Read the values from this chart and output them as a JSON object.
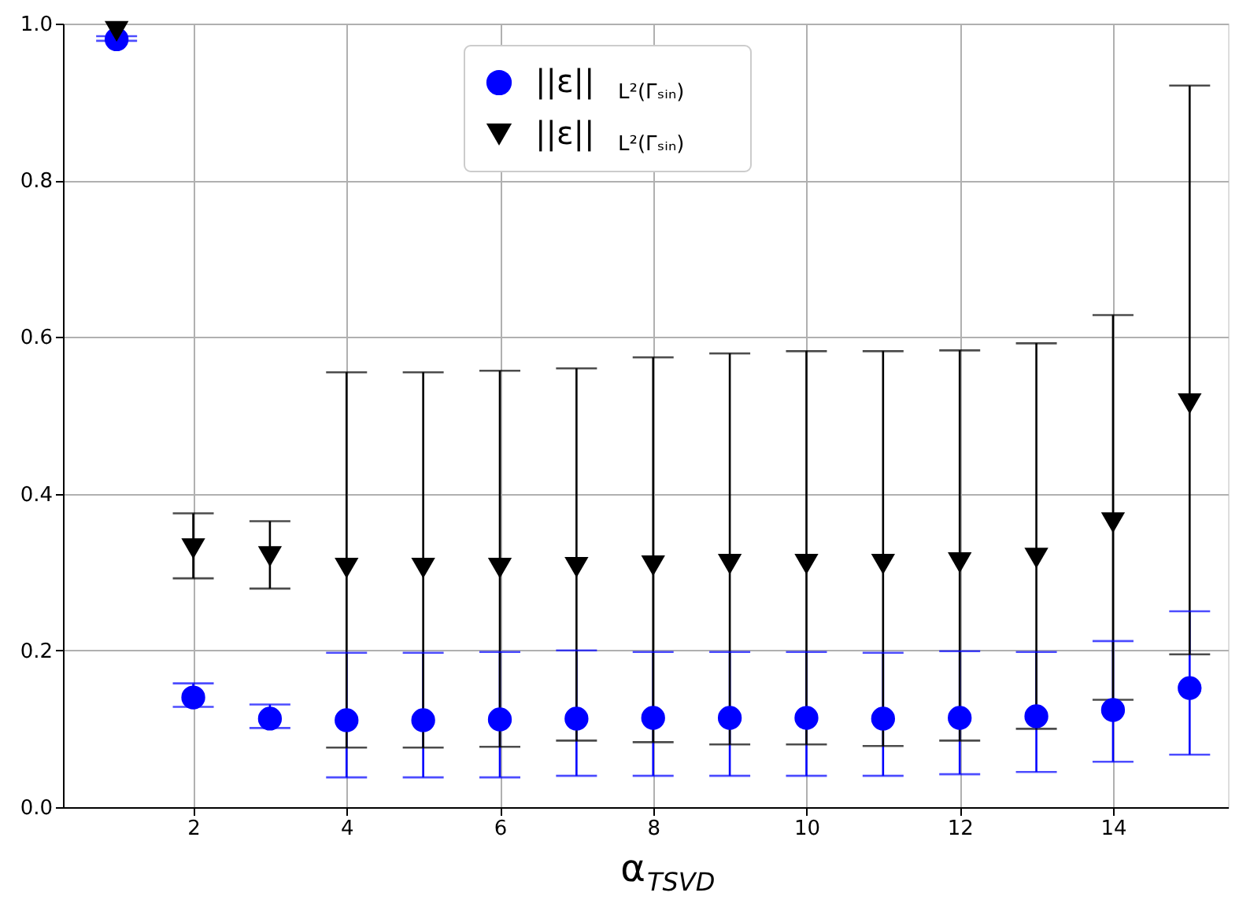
{
  "chart_data": {
    "type": "scatter",
    "xlabel": "α$_{TSVD}$",
    "x": [
      1,
      2,
      3,
      4,
      5,
      6,
      7,
      8,
      9,
      10,
      11,
      12,
      13,
      14,
      15
    ],
    "series": [
      {
        "name": "||ε||$_{L²(Γₛᵢₙ)}$",
        "color": "#0000ff",
        "marker": "circle",
        "values": [
          0.98,
          0.14,
          0.113,
          0.111,
          0.111,
          0.112,
          0.113,
          0.114,
          0.114,
          0.114,
          0.113,
          0.114,
          0.116,
          0.124,
          0.152
        ],
        "errors": [
          [
            0.978,
            0.984
          ],
          [
            0.128,
            0.158
          ],
          [
            0.101,
            0.131
          ],
          [
            0.038,
            0.197
          ],
          [
            0.038,
            0.197
          ],
          [
            0.038,
            0.198
          ],
          [
            0.04,
            0.2
          ],
          [
            0.04,
            0.198
          ],
          [
            0.04,
            0.198
          ],
          [
            0.04,
            0.198
          ],
          [
            0.04,
            0.197
          ],
          [
            0.042,
            0.199
          ],
          [
            0.045,
            0.198
          ],
          [
            0.058,
            0.212
          ],
          [
            0.067,
            0.25
          ]
        ]
      },
      {
        "name": "||ε||$_{L²(Γₛᵢₙ)}$",
        "color": "#000000",
        "marker": "triangle",
        "values": [
          0.99,
          0.33,
          0.32,
          0.305,
          0.305,
          0.305,
          0.306,
          0.308,
          0.31,
          0.31,
          0.31,
          0.312,
          0.318,
          0.363,
          0.515
        ],
        "errors": [
          null,
          [
            0.292,
            0.375
          ],
          [
            0.279,
            0.365
          ],
          [
            0.076,
            0.555
          ],
          [
            0.076,
            0.555
          ],
          [
            0.077,
            0.557
          ],
          [
            0.085,
            0.56
          ],
          [
            0.083,
            0.574
          ],
          [
            0.08,
            0.579
          ],
          [
            0.08,
            0.582
          ],
          [
            0.078,
            0.582
          ],
          [
            0.085,
            0.583
          ],
          [
            0.1,
            0.592
          ],
          [
            0.137,
            0.628
          ],
          [
            0.195,
            0.921
          ]
        ]
      }
    ],
    "xlim": [
      0.3,
      15.5
    ],
    "xticks": [
      2,
      4,
      6,
      8,
      10,
      12,
      14
    ],
    "ylim": [
      0,
      1
    ],
    "yticks": [
      {
        "value": 0,
        "label": "0.0"
      },
      {
        "value": 0.2,
        "label": "0.2"
      },
      {
        "value": 0.4,
        "label": "0.4"
      },
      {
        "value": 0.6,
        "label": "0.6"
      },
      {
        "value": 0.8,
        "label": "0.8"
      },
      {
        "value": 1,
        "label": "1.0"
      }
    ],
    "grid": true,
    "legend": "top"
  }
}
